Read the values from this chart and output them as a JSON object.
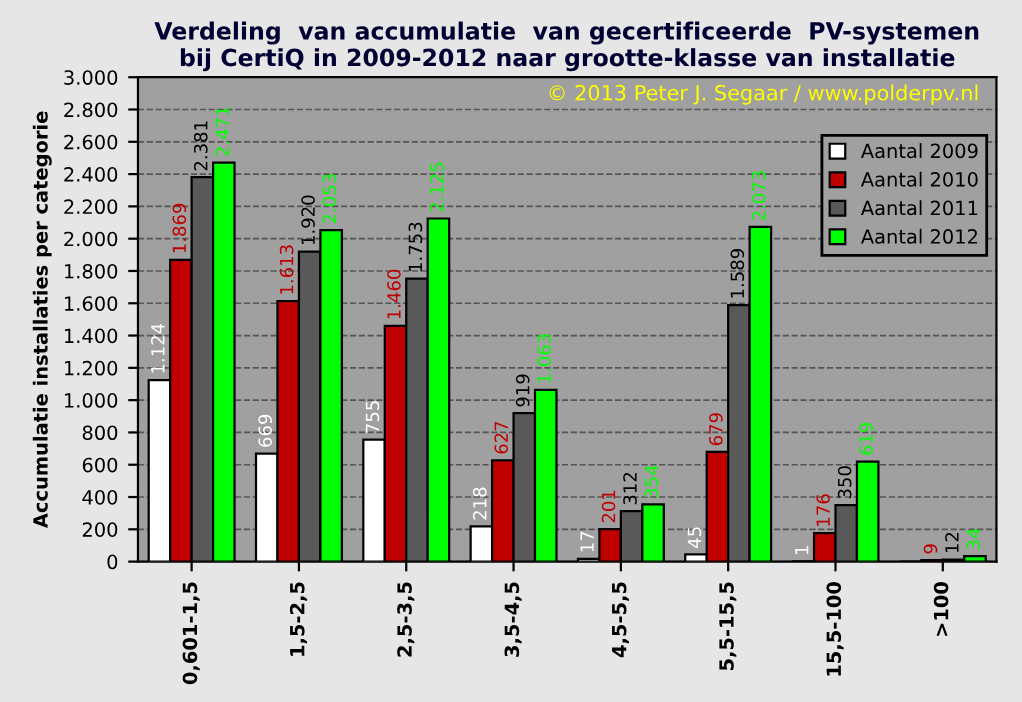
{
  "chart_data": {
    "type": "bar",
    "title": "Verdeling  van accumulatie  van gecertificeerde  PV-systemen\nbij CertiQ in 2009-2012 naar grootte-klasse van installatie",
    "ylabel": "Accumulatie installaties per categorie",
    "annotations": [
      "© 2013 Peter J. Segaar / www.polderpv.nl"
    ],
    "categories": [
      "0,601-1,5",
      "1,5-2,5",
      "2,5-3,5",
      "3,5-4,5",
      "4,5-5,5",
      "5,5-15,5",
      "15,5-100",
      ">100"
    ],
    "series": [
      {
        "name": "Aantal 2009",
        "color": "#ffffff",
        "values": [
          1124,
          669,
          755,
          218,
          17,
          45,
          1,
          0
        ],
        "value_labels": [
          "1.124",
          "669",
          "755",
          "218",
          "17",
          "45",
          "1",
          null
        ]
      },
      {
        "name": "Aantal 2010",
        "color": "#c00000",
        "values": [
          1869,
          1613,
          1460,
          627,
          201,
          679,
          176,
          9
        ],
        "value_labels": [
          "1.869",
          "1.613",
          "1.460",
          "627",
          "201",
          "679",
          "176",
          "9"
        ]
      },
      {
        "name": "Aantal 2011",
        "color": "#595959",
        "values": [
          2381,
          1920,
          1753,
          919,
          312,
          1589,
          350,
          12
        ],
        "value_labels": [
          "2.381",
          "1.920",
          "1.753",
          "919",
          "312",
          "1.589",
          "350",
          "12"
        ]
      },
      {
        "name": "Aantal 2012",
        "color": "#00ff00",
        "values": [
          2471,
          2053,
          2125,
          1063,
          354,
          2073,
          619,
          34
        ],
        "value_labels": [
          "2.471",
          "2.053",
          "2.125",
          "1.063",
          "354",
          "2.073",
          "619",
          "34"
        ]
      }
    ],
    "ylim": [
      0,
      3000
    ],
    "yticks": [
      {
        "value": 0,
        "label": "0"
      },
      {
        "value": 200,
        "label": "200"
      },
      {
        "value": 400,
        "label": "400"
      },
      {
        "value": 600,
        "label": "600"
      },
      {
        "value": 800,
        "label": "800"
      },
      {
        "value": 1000,
        "label": "1.000"
      },
      {
        "value": 1200,
        "label": "1.200"
      },
      {
        "value": 1400,
        "label": "1.400"
      },
      {
        "value": 1600,
        "label": "1.600"
      },
      {
        "value": 1800,
        "label": "1.800"
      },
      {
        "value": 2000,
        "label": "2.000"
      },
      {
        "value": 2200,
        "label": "2.200"
      },
      {
        "value": 2400,
        "label": "2.400"
      },
      {
        "value": 2600,
        "label": "2.600"
      },
      {
        "value": 2800,
        "label": "2.800"
      },
      {
        "value": 3000,
        "label": "3.000"
      }
    ],
    "grid": "y",
    "legend": "top right"
  }
}
